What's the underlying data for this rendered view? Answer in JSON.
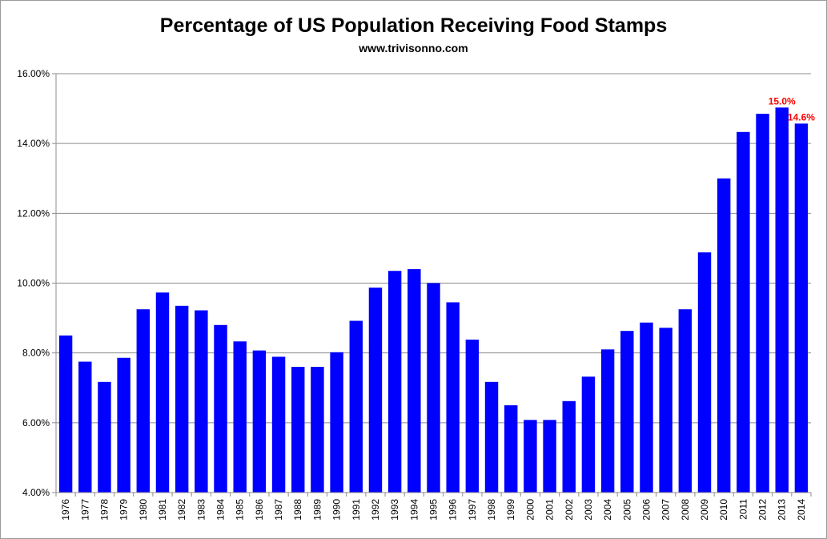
{
  "chart_data": {
    "type": "bar",
    "title": "Percentage of US Population Receiving Food Stamps",
    "subtitle": "www.trivisonno.com",
    "xlabel": "",
    "ylabel": "",
    "ylim": [
      4,
      16
    ],
    "yticks": [
      4,
      6,
      8,
      10,
      12,
      14,
      16
    ],
    "ytick_labels": [
      "4.00%",
      "6.00%",
      "8.00%",
      "10.00%",
      "12.00%",
      "14.00%",
      "16.00%"
    ],
    "grid": true,
    "bar_color": "#0000ff",
    "annotation_color": "#ff0000",
    "categories": [
      "1976",
      "1977",
      "1978",
      "1979",
      "1980",
      "1981",
      "1982",
      "1983",
      "1984",
      "1985",
      "1986",
      "1987",
      "1988",
      "1989",
      "1990",
      "1991",
      "1992",
      "1993",
      "1994",
      "1995",
      "1996",
      "1997",
      "1998",
      "1999",
      "2000",
      "2001",
      "2002",
      "2003",
      "2004",
      "2005",
      "2006",
      "2007",
      "2008",
      "2009",
      "2010",
      "2011",
      "2012",
      "2013",
      "2014"
    ],
    "values": [
      8.5,
      7.75,
      7.17,
      7.86,
      9.25,
      9.73,
      9.35,
      9.22,
      8.8,
      8.33,
      8.07,
      7.89,
      7.6,
      7.6,
      8.02,
      8.92,
      9.87,
      10.35,
      10.4,
      10.0,
      9.45,
      8.38,
      7.17,
      6.5,
      6.08,
      6.08,
      6.62,
      7.32,
      8.1,
      8.63,
      8.87,
      8.72,
      9.25,
      10.88,
      13.0,
      14.33,
      14.85,
      15.03,
      14.57
    ],
    "data_labels": [
      {
        "category": "2013",
        "text": "15.0%"
      },
      {
        "category": "2014",
        "text": "14.6%"
      }
    ]
  }
}
